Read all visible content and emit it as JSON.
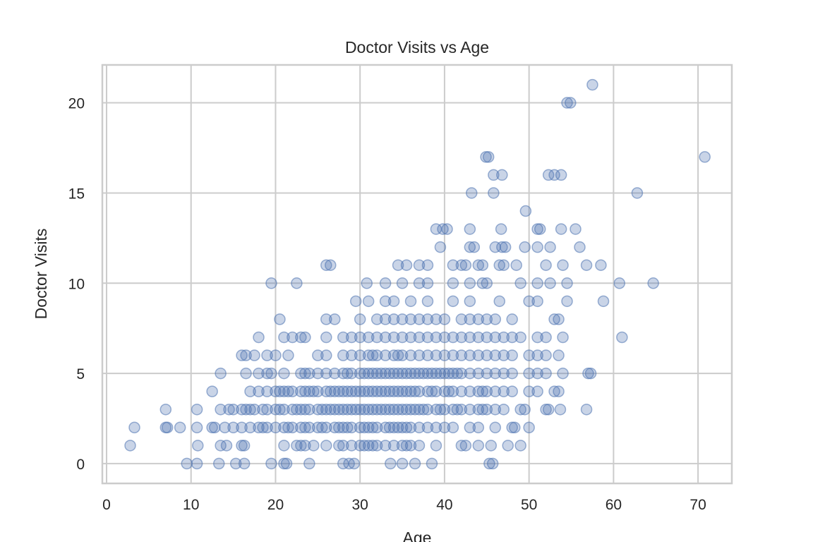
{
  "chart_data": {
    "type": "scatter",
    "title": "Doctor Visits vs Age",
    "xlabel": "Age",
    "ylabel": "Doctor Visits",
    "xlim": [
      -0.5,
      74
    ],
    "ylim": [
      -1.1,
      22.1
    ],
    "xticks": [
      "0",
      "10",
      "20",
      "30",
      "40",
      "50",
      "60",
      "70"
    ],
    "yticks": [
      "0",
      "5",
      "10",
      "15",
      "20"
    ],
    "grid": true,
    "colors": {
      "marker": "#4c72b0",
      "grid": "#cccccc",
      "spine": "#cccccc"
    },
    "marker_alpha": 0.3,
    "points_by_y": {
      "0": [
        9.5,
        10.7,
        13.3,
        15.3,
        16.3,
        19.5,
        21,
        21.3,
        24,
        28,
        28.7,
        29.3,
        33.6,
        35,
        36.5,
        38.5,
        45.3,
        45.7
      ],
      "1": [
        2.8,
        10.8,
        13.5,
        14.2,
        16,
        16.3,
        21,
        22.5,
        23,
        23.5,
        24.5,
        26,
        27.5,
        28,
        29,
        30,
        30.5,
        31,
        31.5,
        32,
        33,
        34,
        35,
        35.5,
        36,
        37,
        39,
        42,
        42.5,
        44,
        45.5,
        47.5,
        49
      ],
      "2": [
        3.3,
        7,
        7.2,
        8.7,
        10.7,
        12.5,
        12.8,
        14,
        15,
        16,
        17,
        18,
        18.5,
        19,
        20,
        21,
        21.5,
        22,
        23,
        23.5,
        24,
        25,
        25.5,
        26,
        27,
        27.5,
        28,
        28.5,
        29,
        30,
        30.5,
        31,
        31.5,
        32,
        33,
        33.5,
        34,
        34.5,
        35,
        35.5,
        36,
        37,
        38,
        39,
        40,
        41,
        43,
        44,
        46,
        48,
        48.3,
        50
      ],
      "3": [
        7,
        10.7,
        13.5,
        14.5,
        15,
        16,
        16.5,
        17,
        17.5,
        18.5,
        19,
        20,
        20.5,
        21,
        22,
        22.5,
        23,
        23.5,
        24,
        25,
        25.5,
        26,
        26.5,
        27,
        27.5,
        28,
        28.5,
        29,
        29.5,
        30,
        30.5,
        31,
        31.5,
        32,
        32.5,
        33,
        33.5,
        34,
        34.5,
        35,
        35.5,
        36,
        36.5,
        37,
        37.5,
        38,
        39,
        39.5,
        40,
        41,
        41.5,
        42,
        43,
        44,
        44.5,
        45,
        46,
        47,
        49,
        49.5,
        52,
        52.3,
        53.7,
        56.8
      ],
      "4": [
        12.5,
        17,
        18,
        19,
        20,
        20.5,
        21,
        21.5,
        22,
        23,
        23.5,
        24,
        24.5,
        25,
        26,
        26.5,
        27,
        27.5,
        28,
        28.5,
        29,
        29.5,
        30,
        30.5,
        31,
        31.5,
        32,
        32.5,
        33,
        33.5,
        34,
        34.5,
        35,
        35.5,
        36,
        36.5,
        37,
        38,
        38.5,
        39,
        40,
        40.5,
        41,
        42,
        43,
        44,
        44.5,
        45,
        46,
        47,
        48,
        50,
        51,
        53,
        53.5
      ],
      "5": [
        13.5,
        16.5,
        18,
        19,
        19.5,
        21,
        23,
        23.5,
        24,
        25,
        26,
        27,
        28,
        28.5,
        29,
        30,
        30.5,
        31,
        31.5,
        32,
        32.5,
        33,
        33.5,
        34,
        34.5,
        35,
        35.5,
        36,
        36.5,
        37,
        37.5,
        38,
        38.5,
        39,
        39.5,
        40,
        40.5,
        41,
        41.5,
        42,
        43,
        44,
        45,
        46,
        47,
        48,
        50,
        51,
        52,
        54,
        57,
        57.3
      ],
      "6": [
        16,
        16.5,
        17.5,
        19,
        20,
        21.5,
        25,
        26,
        28,
        29,
        30,
        31,
        31.5,
        32,
        33,
        34,
        34.5,
        35,
        36,
        37,
        38,
        39,
        40,
        41,
        42,
        43,
        44,
        45,
        46,
        47,
        48,
        50,
        51,
        52,
        53.5
      ],
      "7": [
        18,
        21,
        22,
        23,
        23.5,
        26,
        28,
        29,
        30,
        31,
        32,
        33,
        34,
        35,
        36,
        37,
        38,
        39,
        40,
        41,
        42,
        43,
        44,
        45,
        46,
        47,
        48,
        49,
        51,
        52,
        54,
        61
      ],
      "8": [
        20.5,
        26,
        27,
        30,
        32,
        33,
        34,
        35,
        36,
        37,
        38,
        39,
        40,
        42,
        43,
        44,
        45,
        46,
        48,
        53,
        53.5
      ],
      "9": [
        29.5,
        31,
        33,
        34,
        36,
        38,
        41,
        43,
        46.5,
        50,
        51,
        54.5,
        58.8
      ],
      "10": [
        19.5,
        22.5,
        30.8,
        33,
        35,
        37,
        38,
        41,
        43,
        44.5,
        45,
        49,
        51,
        52.5,
        54.5,
        60.7,
        64.7
      ],
      "11": [
        26,
        26.5,
        34.5,
        35.5,
        37,
        38,
        41,
        42,
        42.5,
        44,
        44.5,
        46.5,
        47,
        48.5,
        52,
        54,
        56.8,
        58.5
      ],
      "12": [
        39.5,
        43,
        43.5,
        46,
        46.8,
        47.2,
        49.5,
        51,
        52.5,
        56
      ],
      "13": [
        39,
        39.8,
        40.3,
        43,
        46.7,
        51,
        51.3,
        53.8,
        55.5
      ],
      "14": [
        49.6
      ],
      "15": [
        43.2,
        45.8,
        62.8
      ],
      "16": [
        45.8,
        46.8,
        52.3,
        53,
        53.8
      ],
      "17": [
        44.9,
        45.2,
        70.8
      ],
      "20": [
        54.5,
        54.9
      ],
      "21": [
        57.5
      ]
    }
  }
}
